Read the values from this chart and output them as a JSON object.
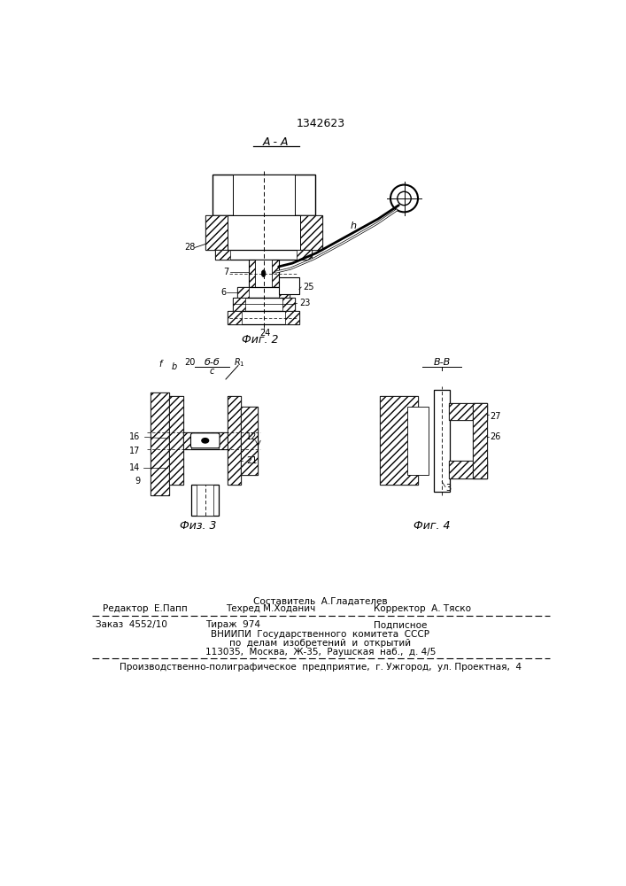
{
  "patent_number": "1342623",
  "bg_color": "#ffffff",
  "fig2_label": "Фиг. 2",
  "fig3_label": "Физ. 3",
  "fig4_label": "Фиг. 4",
  "section_AA": "A - A",
  "section_BB": "б-б",
  "section_VV": "В-В",
  "text_sostavitel": "Составитель  А.Гладателев",
  "text_redaktor": "Редактор  Е.Папп",
  "text_tekhred": "Техред М.Ходанич",
  "text_korrektor": "Корректор  А. Тяско",
  "text_zakaz": "Заказ  4552/10",
  "text_tirazh": "Тираж  974",
  "text_podpisnoe": "Подписное",
  "text_vniip1": "ВНИИПИ  Государственного  комитета  СССР",
  "text_vniip2": "по  делам  изобретений  и  открытий",
  "text_vniip3": "113035,  Москва,  Ж-35,  Раушская  наб.,  д. 4/5",
  "text_proizv": "Производственно-полиграфическое  предприятие,  г. Ужгород,  ул. Проектная,  4"
}
